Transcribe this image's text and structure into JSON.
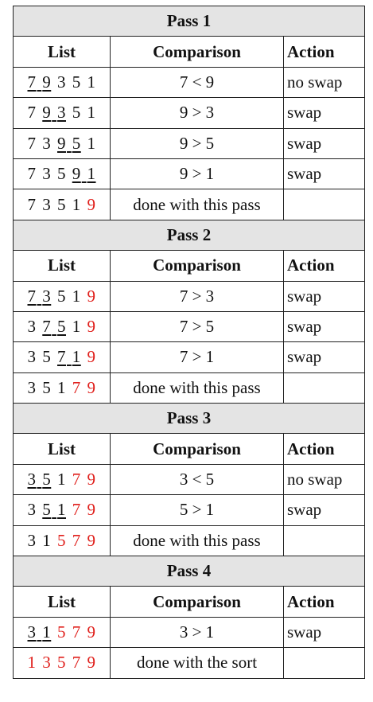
{
  "headers": {
    "list": "List",
    "comparison": "Comparison",
    "action": "Action"
  },
  "colors": {
    "sorted_digit": "#e0201c",
    "pass_band": "#e4e4e4"
  },
  "passes": [
    {
      "title": "Pass 1",
      "rows": [
        {
          "digits": [
            "7",
            "9",
            "3",
            "5",
            "1"
          ],
          "underline": [
            0,
            1
          ],
          "red": [],
          "comparison": "7 < 9",
          "action": "no swap"
        },
        {
          "digits": [
            "7",
            "9",
            "3",
            "5",
            "1"
          ],
          "underline": [
            1,
            2
          ],
          "red": [],
          "comparison": "9 > 3",
          "action": "swap"
        },
        {
          "digits": [
            "7",
            "3",
            "9",
            "5",
            "1"
          ],
          "underline": [
            2,
            3
          ],
          "red": [],
          "comparison": "9 > 5",
          "action": "swap"
        },
        {
          "digits": [
            "7",
            "3",
            "5",
            "9",
            "1"
          ],
          "underline": [
            3,
            4
          ],
          "red": [],
          "comparison": "9 > 1",
          "action": "swap"
        },
        {
          "digits": [
            "7",
            "3",
            "5",
            "1",
            "9"
          ],
          "underline": [],
          "red": [
            4
          ],
          "comparison": "done with this pass",
          "action": ""
        }
      ]
    },
    {
      "title": "Pass 2",
      "rows": [
        {
          "digits": [
            "7",
            "3",
            "5",
            "1",
            "9"
          ],
          "underline": [
            0,
            1
          ],
          "red": [
            4
          ],
          "comparison": "7 > 3",
          "action": "swap"
        },
        {
          "digits": [
            "3",
            "7",
            "5",
            "1",
            "9"
          ],
          "underline": [
            1,
            2
          ],
          "red": [
            4
          ],
          "comparison": "7 > 5",
          "action": "swap"
        },
        {
          "digits": [
            "3",
            "5",
            "7",
            "1",
            "9"
          ],
          "underline": [
            2,
            3
          ],
          "red": [
            4
          ],
          "comparison": "7 > 1",
          "action": "swap"
        },
        {
          "digits": [
            "3",
            "5",
            "1",
            "7",
            "9"
          ],
          "underline": [],
          "red": [
            3,
            4
          ],
          "comparison": "done with this pass",
          "action": ""
        }
      ]
    },
    {
      "title": "Pass 3",
      "rows": [
        {
          "digits": [
            "3",
            "5",
            "1",
            "7",
            "9"
          ],
          "underline": [
            0,
            1
          ],
          "red": [
            3,
            4
          ],
          "comparison": "3 < 5",
          "action": "no swap"
        },
        {
          "digits": [
            "3",
            "5",
            "1",
            "7",
            "9"
          ],
          "underline": [
            1,
            2
          ],
          "red": [
            3,
            4
          ],
          "comparison": "5 > 1",
          "action": "swap"
        },
        {
          "digits": [
            "3",
            "1",
            "5",
            "7",
            "9"
          ],
          "underline": [],
          "red": [
            2,
            3,
            4
          ],
          "comparison": "done with this pass",
          "action": ""
        }
      ]
    },
    {
      "title": "Pass 4",
      "rows": [
        {
          "digits": [
            "3",
            "1",
            "5",
            "7",
            "9"
          ],
          "underline": [
            0,
            1
          ],
          "red": [
            2,
            3,
            4
          ],
          "comparison": "3 > 1",
          "action": "swap"
        },
        {
          "digits": [
            "1",
            "3",
            "5",
            "7",
            "9"
          ],
          "underline": [],
          "red": [
            0,
            1,
            2,
            3,
            4
          ],
          "comparison": "done with the sort",
          "action": ""
        }
      ]
    }
  ]
}
